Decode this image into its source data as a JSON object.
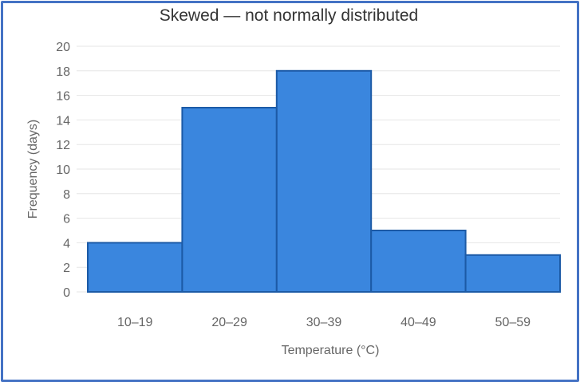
{
  "chart_data": {
    "type": "bar",
    "title": "Skewed — not normally distributed",
    "xlabel": "Temperature (°C)",
    "ylabel": "Frequency (days)",
    "categories": [
      "10–19",
      "20–29",
      "30–39",
      "40–49",
      "50–59"
    ],
    "values": [
      4,
      15,
      18,
      5,
      3
    ],
    "ylim": [
      0,
      20
    ],
    "yticks": [
      0,
      2,
      4,
      6,
      8,
      10,
      12,
      14,
      16,
      18,
      20
    ],
    "grid": true,
    "legend": "none",
    "colors": {
      "bar_fill": "#3a86de",
      "bar_edge": "#1c5aa6",
      "frame": "#4472c4"
    }
  }
}
